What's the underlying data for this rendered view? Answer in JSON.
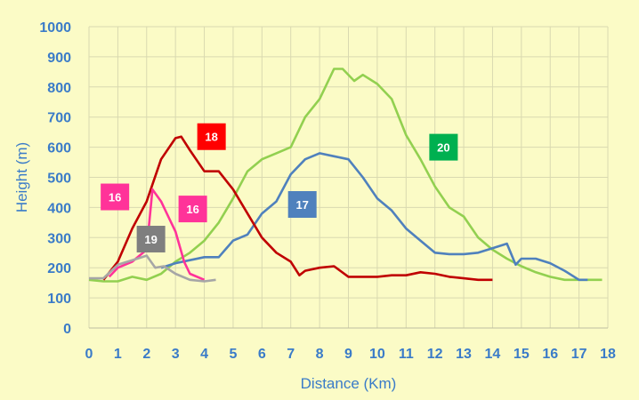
{
  "chart_data": {
    "type": "line",
    "title": "",
    "xlabel": "Distance (Km)",
    "ylabel": "Height (m)",
    "xlim": [
      0,
      18
    ],
    "ylim": [
      0,
      1000
    ],
    "xticks": [
      0,
      1,
      2,
      3,
      4,
      5,
      6,
      7,
      8,
      9,
      10,
      11,
      12,
      13,
      14,
      15,
      16,
      17,
      18
    ],
    "yticks": [
      0,
      100,
      200,
      300,
      400,
      500,
      600,
      700,
      800,
      900,
      1000
    ],
    "grid": true,
    "series": [
      {
        "name": "20",
        "color": "#92d050",
        "points": [
          [
            0,
            160
          ],
          [
            0.5,
            155
          ],
          [
            1,
            155
          ],
          [
            1.5,
            170
          ],
          [
            2,
            160
          ],
          [
            2.5,
            180
          ],
          [
            3,
            220
          ],
          [
            3.5,
            250
          ],
          [
            4,
            290
          ],
          [
            4.5,
            350
          ],
          [
            5,
            430
          ],
          [
            5.5,
            520
          ],
          [
            6,
            560
          ],
          [
            6.5,
            580
          ],
          [
            7,
            600
          ],
          [
            7.5,
            700
          ],
          [
            8,
            760
          ],
          [
            8.5,
            860
          ],
          [
            8.8,
            860
          ],
          [
            9.2,
            820
          ],
          [
            9.5,
            840
          ],
          [
            10,
            810
          ],
          [
            10.5,
            760
          ],
          [
            11,
            640
          ],
          [
            11.5,
            560
          ],
          [
            12,
            470
          ],
          [
            12.5,
            400
          ],
          [
            13,
            370
          ],
          [
            13.5,
            300
          ],
          [
            14,
            260
          ],
          [
            14.5,
            230
          ],
          [
            15,
            205
          ],
          [
            15.5,
            185
          ],
          [
            16,
            170
          ],
          [
            16.5,
            160
          ],
          [
            17,
            160
          ],
          [
            17.5,
            160
          ],
          [
            17.8,
            160
          ]
        ]
      },
      {
        "name": "17",
        "color": "#4f81bd",
        "points": [
          [
            2.5,
            200
          ],
          [
            3,
            215
          ],
          [
            3.5,
            225
          ],
          [
            4,
            235
          ],
          [
            4.5,
            235
          ],
          [
            5,
            290
          ],
          [
            5.5,
            310
          ],
          [
            6,
            380
          ],
          [
            6.5,
            420
          ],
          [
            7,
            510
          ],
          [
            7.5,
            560
          ],
          [
            8,
            580
          ],
          [
            8.5,
            570
          ],
          [
            9,
            560
          ],
          [
            9.5,
            500
          ],
          [
            10,
            430
          ],
          [
            10.5,
            390
          ],
          [
            11,
            330
          ],
          [
            11.5,
            290
          ],
          [
            12,
            250
          ],
          [
            12.5,
            245
          ],
          [
            13,
            245
          ],
          [
            13.5,
            250
          ],
          [
            14,
            265
          ],
          [
            14.5,
            280
          ],
          [
            14.8,
            210
          ],
          [
            15,
            230
          ],
          [
            15.5,
            230
          ],
          [
            16,
            215
          ],
          [
            16.5,
            190
          ],
          [
            17,
            160
          ],
          [
            17.3,
            160
          ]
        ]
      },
      {
        "name": "18",
        "color": "#c00000",
        "points": [
          [
            0.5,
            160
          ],
          [
            1,
            220
          ],
          [
            1.5,
            330
          ],
          [
            2,
            420
          ],
          [
            2.5,
            560
          ],
          [
            3,
            630
          ],
          [
            3.2,
            635
          ],
          [
            3.5,
            590
          ],
          [
            4,
            520
          ],
          [
            4.5,
            520
          ],
          [
            5,
            460
          ],
          [
            5.5,
            380
          ],
          [
            6,
            300
          ],
          [
            6.5,
            250
          ],
          [
            7,
            220
          ],
          [
            7.3,
            175
          ],
          [
            7.5,
            190
          ],
          [
            8,
            200
          ],
          [
            8.5,
            205
          ],
          [
            9,
            170
          ],
          [
            9.5,
            170
          ],
          [
            10,
            170
          ],
          [
            10.5,
            175
          ],
          [
            11,
            175
          ],
          [
            11.5,
            185
          ],
          [
            12,
            180
          ],
          [
            12.5,
            170
          ],
          [
            13,
            165
          ],
          [
            13.5,
            160
          ],
          [
            14,
            160
          ]
        ]
      },
      {
        "name": "16",
        "color": "#ff3399",
        "points": [
          [
            0.7,
            170
          ],
          [
            1,
            200
          ],
          [
            1.5,
            220
          ],
          [
            2,
            260
          ],
          [
            2.2,
            460
          ],
          [
            2.5,
            420
          ],
          [
            2.8,
            360
          ],
          [
            3,
            320
          ],
          [
            3.3,
            220
          ],
          [
            3.5,
            180
          ],
          [
            4,
            160
          ]
        ]
      },
      {
        "name": "19",
        "color": "#a6a6a6",
        "points": [
          [
            0,
            165
          ],
          [
            0.5,
            165
          ],
          [
            1,
            210
          ],
          [
            1.5,
            225
          ],
          [
            2,
            240
          ],
          [
            2.3,
            200
          ],
          [
            2.6,
            205
          ],
          [
            3,
            180
          ],
          [
            3.5,
            160
          ],
          [
            4,
            155
          ],
          [
            4.4,
            160
          ]
        ]
      }
    ],
    "labels": [
      {
        "text": "20",
        "x": 12.3,
        "y": 600,
        "color": "#00b050"
      },
      {
        "text": "17",
        "x": 7.4,
        "y": 410,
        "color": "#4f81bd"
      },
      {
        "text": "18",
        "x": 4.25,
        "y": 635,
        "color": "#ff0000"
      },
      {
        "text": "16",
        "x": 0.9,
        "y": 435,
        "color": "#ff3399"
      },
      {
        "text": "16",
        "x": 3.6,
        "y": 395,
        "color": "#ff3399"
      },
      {
        "text": "19",
        "x": 2.15,
        "y": 295,
        "color": "#7f7f7f"
      }
    ]
  }
}
